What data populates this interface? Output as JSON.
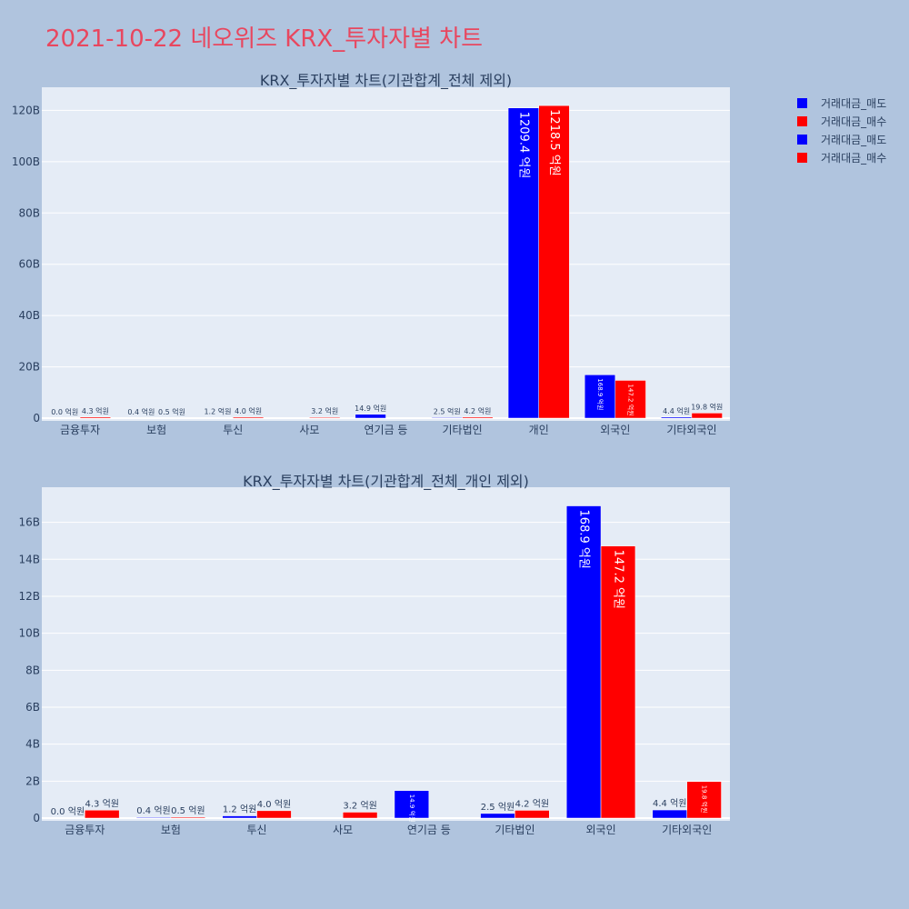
{
  "title": "2021-10-22 네오위즈 KRX_투자자별 차트",
  "colors": {
    "sell": "#0000ff",
    "buy": "#ff0000",
    "title": "#e8475f",
    "plot_bg": "#e5ecf6",
    "page_bg": "#b0c4de"
  },
  "legend": {
    "placement": "top-right",
    "items": [
      {
        "label": "거래대금_매도",
        "color": "#0000ff"
      },
      {
        "label": "거래대금_매수",
        "color": "#ff0000"
      },
      {
        "label": "거래대금_매도",
        "color": "#0000ff"
      },
      {
        "label": "거래대금_매수",
        "color": "#ff0000"
      }
    ]
  },
  "chart_data": [
    {
      "type": "bar",
      "title": "KRX_투자자별 차트(기관합계_전체 제외)",
      "categories": [
        "금융투자",
        "보험",
        "투신",
        "사모",
        "연기금 등",
        "기타법인",
        "개인",
        "외국인",
        "기타외국인"
      ],
      "series": [
        {
          "name": "거래대금_매도",
          "color": "#0000ff",
          "values": [
            0.0,
            0.04,
            0.12,
            null,
            1.49,
            0.25,
            120.94,
            16.89,
            0.44
          ],
          "labels": [
            "0.0 억원",
            "0.4 억원",
            "1.2 억원",
            "",
            "14.9 억원",
            "2.5 억원",
            "1209.4 억원",
            "168.9 억원",
            "4.4 억원"
          ]
        },
        {
          "name": "거래대금_매수",
          "color": "#ff0000",
          "values": [
            0.43,
            0.05,
            0.4,
            0.32,
            null,
            0.42,
            121.85,
            14.72,
            1.98
          ],
          "labels": [
            "4.3 억원",
            "0.5 억원",
            "4.0 억원",
            "3.2 억원",
            "",
            "4.2 억원",
            "1218.5 억원",
            "147.2 억원",
            "19.8 억원"
          ]
        }
      ],
      "yticks": [
        0,
        20,
        40,
        60,
        80,
        100,
        120
      ],
      "ytick_labels": [
        "0",
        "20B",
        "40B",
        "60B",
        "80B",
        "100B",
        "120B"
      ],
      "ylim": [
        0,
        129
      ],
      "grid": true
    },
    {
      "type": "bar",
      "title": "KRX_투자자별 차트(기관합계_전체_개인 제외)",
      "categories": [
        "금융투자",
        "보험",
        "투신",
        "사모",
        "연기금 등",
        "기타법인",
        "외국인",
        "기타외국인"
      ],
      "series": [
        {
          "name": "거래대금_매도",
          "color": "#0000ff",
          "values": [
            0.0,
            0.04,
            0.12,
            null,
            1.49,
            0.25,
            16.89,
            0.44
          ],
          "labels": [
            "0.0 억원",
            "0.4 억원",
            "1.2 억원",
            "",
            "14.9 억원",
            "2.5 억원",
            "168.9 억원",
            "4.4 억원"
          ]
        },
        {
          "name": "거래대금_매수",
          "color": "#ff0000",
          "values": [
            0.43,
            0.05,
            0.4,
            0.32,
            null,
            0.42,
            14.72,
            1.98
          ],
          "labels": [
            "4.3 억원",
            "0.5 억원",
            "4.0 억원",
            "3.2 억원",
            "",
            "4.2 억원",
            "147.2 억원",
            "19.8 억원"
          ]
        }
      ],
      "yticks": [
        0,
        2,
        4,
        6,
        8,
        10,
        12,
        14,
        16
      ],
      "ytick_labels": [
        "0",
        "2B",
        "4B",
        "6B",
        "8B",
        "10B",
        "12B",
        "14B",
        "16B"
      ],
      "ylim": [
        0,
        17.9
      ],
      "grid": true
    }
  ]
}
